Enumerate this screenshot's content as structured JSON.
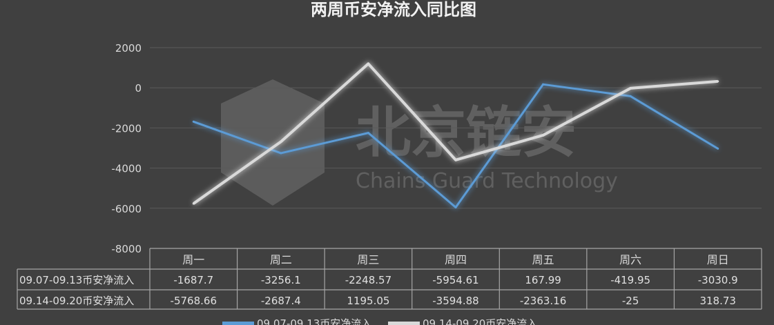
{
  "chart_data": {
    "type": "line",
    "title": "两周币安净流入同比图",
    "categories": [
      "周一",
      "周二",
      "周三",
      "周四",
      "周五",
      "周六",
      "周日"
    ],
    "ylim": [
      -8000,
      2000
    ],
    "yticks": [
      "2000",
      "0",
      "-2000",
      "-4000",
      "-6000",
      "-8000"
    ],
    "ytick_values": [
      2000,
      0,
      -2000,
      -4000,
      -6000,
      -8000
    ],
    "grid": true,
    "legend_position": "bottom",
    "data_table": true,
    "series": [
      {
        "name": "09.07-09.13币安净流入",
        "color": "#5b9bd5",
        "values": [
          -1687.7,
          -3256.1,
          -2248.57,
          -5954.61,
          167.99,
          -419.95,
          -3030.9
        ],
        "labels": [
          "-1687.7",
          "-3256.1",
          "-2248.57",
          "-5954.61",
          "167.99",
          "-419.95",
          "-3030.9"
        ]
      },
      {
        "name": "09.14-09.20币安净流入",
        "color": "#d9d9d9",
        "values": [
          -5768.66,
          -2687.4,
          1195.05,
          -3594.88,
          -2363.16,
          -25,
          318.73
        ],
        "labels": [
          "-5768.66",
          "-2687.4",
          "1195.05",
          "-3594.88",
          "-2363.16",
          "-25",
          "318.73"
        ]
      }
    ]
  },
  "watermark": {
    "cn": "北京链安",
    "en": "Chains Guard Technology"
  }
}
